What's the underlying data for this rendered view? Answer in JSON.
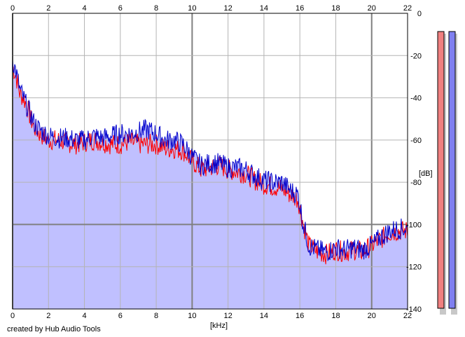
{
  "chart_data": {
    "type": "line",
    "title": "",
    "xlabel": "[kHz]",
    "ylabel": "[dB]",
    "xlim": [
      0,
      22
    ],
    "ylim": [
      -140,
      0
    ],
    "x_ticks": [
      "0",
      "2",
      "4",
      "6",
      "8",
      "10",
      "12",
      "14",
      "16",
      "18",
      "20",
      "22"
    ],
    "y_ticks": [
      "0",
      "-20",
      "-40",
      "-60",
      "-80",
      "-100",
      "-120",
      "-140"
    ],
    "grid": true,
    "legend": "none",
    "series": [
      {
        "color": "#ff0000",
        "points": [
          [
            0.0,
            -25
          ],
          [
            0.2,
            -30
          ],
          [
            0.4,
            -38
          ],
          [
            0.6,
            -40
          ],
          [
            0.8,
            -44
          ],
          [
            1.0,
            -50
          ],
          [
            1.2,
            -54
          ],
          [
            1.5,
            -57
          ],
          [
            2.0,
            -60
          ],
          [
            2.5,
            -60
          ],
          [
            3.0,
            -61
          ],
          [
            3.5,
            -62
          ],
          [
            4.0,
            -61
          ],
          [
            4.5,
            -60
          ],
          [
            5.0,
            -61
          ],
          [
            5.5,
            -62
          ],
          [
            6.0,
            -62
          ],
          [
            6.5,
            -61
          ],
          [
            7.0,
            -62
          ],
          [
            7.5,
            -62
          ],
          [
            8.0,
            -62
          ],
          [
            8.5,
            -64
          ],
          [
            9.0,
            -64
          ],
          [
            9.5,
            -65
          ],
          [
            10.0,
            -70
          ],
          [
            10.5,
            -74
          ],
          [
            11.0,
            -73
          ],
          [
            11.5,
            -72
          ],
          [
            12.0,
            -74
          ],
          [
            12.5,
            -75
          ],
          [
            13.0,
            -76
          ],
          [
            13.5,
            -79
          ],
          [
            14.0,
            -81
          ],
          [
            14.5,
            -82
          ],
          [
            15.0,
            -83
          ],
          [
            15.5,
            -86
          ],
          [
            15.9,
            -88
          ],
          [
            16.2,
            -100
          ],
          [
            16.5,
            -110
          ],
          [
            17.0,
            -113
          ],
          [
            17.5,
            -114
          ],
          [
            18.0,
            -112
          ],
          [
            18.5,
            -113
          ],
          [
            19.0,
            -112
          ],
          [
            19.5,
            -113
          ],
          [
            20.0,
            -110
          ],
          [
            20.5,
            -107
          ],
          [
            21.0,
            -104
          ],
          [
            21.5,
            -103
          ],
          [
            22.0,
            -103
          ]
        ]
      },
      {
        "color": "#0000cc",
        "points": [
          [
            0.0,
            -22
          ],
          [
            0.2,
            -28
          ],
          [
            0.4,
            -36
          ],
          [
            0.6,
            -40
          ],
          [
            0.8,
            -44
          ],
          [
            1.0,
            -48
          ],
          [
            1.2,
            -52
          ],
          [
            1.5,
            -55
          ],
          [
            2.0,
            -58
          ],
          [
            2.5,
            -59
          ],
          [
            3.0,
            -59
          ],
          [
            3.5,
            -60
          ],
          [
            4.0,
            -60
          ],
          [
            4.5,
            -58
          ],
          [
            5.0,
            -59
          ],
          [
            5.5,
            -58
          ],
          [
            6.0,
            -57
          ],
          [
            6.5,
            -57
          ],
          [
            7.0,
            -56
          ],
          [
            7.5,
            -55
          ],
          [
            8.0,
            -57
          ],
          [
            8.5,
            -60
          ],
          [
            9.0,
            -60
          ],
          [
            9.5,
            -62
          ],
          [
            10.0,
            -68
          ],
          [
            10.5,
            -72
          ],
          [
            11.0,
            -71
          ],
          [
            11.5,
            -71
          ],
          [
            12.0,
            -73
          ],
          [
            12.5,
            -73
          ],
          [
            13.0,
            -74
          ],
          [
            13.5,
            -77
          ],
          [
            14.0,
            -79
          ],
          [
            14.5,
            -80
          ],
          [
            15.0,
            -80
          ],
          [
            15.5,
            -84
          ],
          [
            15.9,
            -86
          ],
          [
            16.2,
            -100
          ],
          [
            16.5,
            -110
          ],
          [
            17.0,
            -112
          ],
          [
            17.5,
            -113
          ],
          [
            18.0,
            -111
          ],
          [
            18.5,
            -112
          ],
          [
            19.0,
            -111
          ],
          [
            19.5,
            -112
          ],
          [
            20.0,
            -110
          ],
          [
            20.5,
            -106
          ],
          [
            21.0,
            -103
          ],
          [
            21.5,
            -102
          ],
          [
            22.0,
            -102
          ]
        ]
      }
    ],
    "level_meters": [
      {
        "color": "#f08080",
        "level": 1.0
      },
      {
        "color": "#8080f0",
        "level": 1.0
      }
    ],
    "colors": {
      "fill": "#c0c0ff",
      "grid": "#b4b4b4",
      "grid_major": "#808080"
    },
    "footer": "created by Hub Audio Tools"
  }
}
